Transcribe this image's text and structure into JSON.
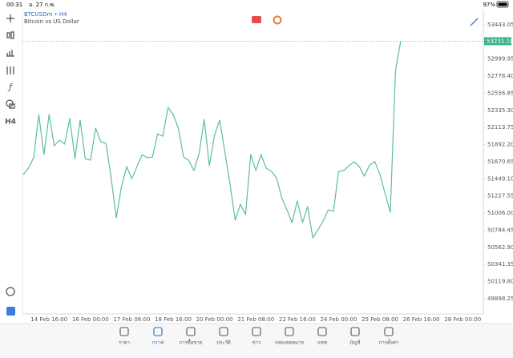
{
  "status_bar": {
    "time": "00:31",
    "date": "อ. 27 ก.พ.",
    "battery": "97%"
  },
  "toolbar": {
    "timeframe": "H4"
  },
  "chart_header": {
    "symbol_line": "BTCUSDm • H4",
    "description": "Bitcoin vs US Dollar"
  },
  "chart_data": {
    "type": "line",
    "color": "#5bbf9a",
    "categories": [
      null,
      null,
      null,
      null,
      null,
      "14 Feb 16:00",
      null,
      null,
      null,
      null,
      null,
      null,
      null,
      "16 Feb 00:00",
      null,
      null,
      null,
      null,
      null,
      null,
      null,
      "17 Feb 08:00",
      null,
      null,
      null,
      null,
      null,
      null,
      null,
      "18 Feb 16:00",
      null,
      null,
      null,
      null,
      null,
      null,
      null,
      "20 Feb 00:00",
      null,
      null,
      null,
      null,
      null,
      null,
      null,
      "21 Feb 08:00",
      null,
      null,
      null,
      null,
      null,
      null,
      null,
      "22 Feb 16:00",
      null,
      null,
      null,
      null,
      null,
      null,
      null,
      "24 Feb 00:00",
      null,
      null,
      null,
      null,
      null,
      null,
      null,
      "25 Feb 08:00",
      null,
      null,
      null,
      null,
      null,
      null,
      null,
      "26 Feb 16:00",
      null,
      null,
      null,
      null,
      null,
      null,
      null,
      "28 Feb 00:00"
    ],
    "values": [
      51505,
      51588,
      51722,
      52282,
      51764,
      52282,
      51878,
      51950,
      51899,
      52230,
      51712,
      52210,
      51712,
      51691,
      52106,
      51930,
      51909,
      51463,
      50945,
      51349,
      51608,
      51453,
      51608,
      51764,
      51722,
      51733,
      52033,
      52002,
      52375,
      52282,
      52106,
      51733,
      51691,
      51557,
      51774,
      52220,
      51619,
      52013,
      52210,
      51795,
      51380,
      50914,
      51121,
      50987,
      51764,
      51557,
      51764,
      51588,
      51546,
      51463,
      51204,
      51049,
      50883,
      51163,
      50883,
      51090,
      50686,
      50790,
      50904,
      51049,
      51028,
      51546,
      51557,
      51619,
      51671,
      51608,
      51484,
      51629,
      51671,
      51505,
      51256,
      51018,
      52852,
      53231,
      null,
      null,
      null,
      null,
      null,
      null,
      null,
      null,
      null,
      null,
      null,
      null
    ],
    "ylim": [
      49701,
      53640
    ],
    "yticks": [
      {
        "value": 53443.05,
        "label": "53443.05"
      },
      {
        "value": 52999.95,
        "label": "52999.95"
      },
      {
        "value": 52778.4,
        "label": "52778.40"
      },
      {
        "value": 52556.85,
        "label": "52556.85"
      },
      {
        "value": 52335.3,
        "label": "52335.30"
      },
      {
        "value": 52113.75,
        "label": "52113.75"
      },
      {
        "value": 51892.2,
        "label": "51892.20"
      },
      {
        "value": 51670.65,
        "label": "51670.65"
      },
      {
        "value": 51449.1,
        "label": "51449.10"
      },
      {
        "value": 51227.55,
        "label": "51227.55"
      },
      {
        "value": 51006,
        "label": "51006.00"
      },
      {
        "value": 50784.45,
        "label": "50784.45"
      },
      {
        "value": 50562.9,
        "label": "50562.90"
      },
      {
        "value": 50341.35,
        "label": "50341.35"
      },
      {
        "value": 50119.8,
        "label": "50119.80"
      },
      {
        "value": 49898.25,
        "label": "49898.25"
      }
    ],
    "current_price": {
      "value": 53231.1,
      "label": "53231.10"
    }
  },
  "bottom_nav": [
    {
      "label": "ราคา"
    },
    {
      "label": "กราฟ"
    },
    {
      "label": "การซื้อขาย"
    },
    {
      "label": "ประวัติ"
    },
    {
      "label": "ข่าว"
    },
    {
      "label": "กล่องจดหมาย"
    },
    {
      "label": "แชท"
    },
    {
      "label": "บัญชี"
    },
    {
      "label": "การตั้งค่า"
    }
  ]
}
